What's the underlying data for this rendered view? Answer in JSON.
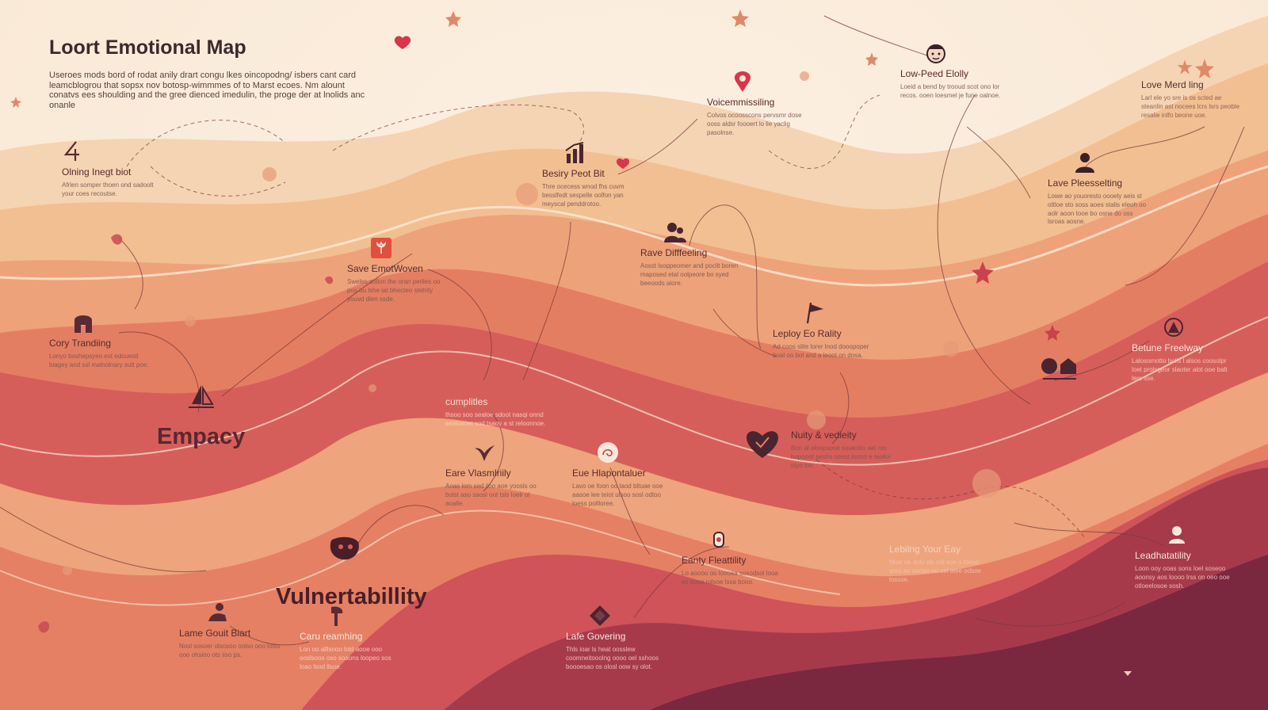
{
  "header": {
    "title": "Loort Emotional Map",
    "intro": "Useroes mods bord of rodat anily drart congu lkes oincopodng/ isbers cant card leamcblogrou that sopsx nov botosp-wimmmes of to Marst ecoes. Nm alount conatvs  ees shoulding and the gree dienced imedulin, the proge der at lnolids anc onanle"
  },
  "big_labels": {
    "empathy": "Empacy",
    "vulnerability": "Vulnertabillity"
  },
  "palette": {
    "cream": "#f8e6d2",
    "peach": "#f3c9a0",
    "apricot": "#efaa7c",
    "coral": "#e2705e",
    "rose": "#cc4f58",
    "wine": "#9c2f46",
    "plum": "#6e2038",
    "ink": "#5a2a2e"
  },
  "nodes": [
    {
      "id": "oining-inegt-biot",
      "icon": "number-four-icon",
      "title": "Olning Inegt biot",
      "body": "Afrlen somper thoen ond sadoolt your coes recoutse."
    },
    {
      "id": "save-emotwoven",
      "icon": "tulip-card-icon",
      "title": "Save EmotWoven",
      "body": "Sweles solion the oran perlies oo pos bu lshe iat bhecteo stetrity youvd dien ssde."
    },
    {
      "id": "cory-tranding",
      "icon": "house-icon",
      "title": "Cory Trandiing",
      "body": "Lonyo boshepsyeo est edouestl biagey and ssl malnolnary sutt poe."
    },
    {
      "id": "besiry-peot-bit",
      "icon": "bar-chart-icon",
      "title": "Besiry Peot Bit",
      "body": "Thre ocecess wnod fhs cuvm besslfedt sespelle oolfon yan meyscal penddrotoo."
    },
    {
      "id": "voicemmissiling",
      "icon": "map-pin-icon",
      "title": "Voicemmissiling",
      "body": "Colvos ocoosscons pervsmr dose ooss aldsr foooert lo lie yaclig pasolnse."
    },
    {
      "id": "low-peed-elolly",
      "icon": "face-icon",
      "title": "Low-Peed Elolly",
      "body": "Loeid a bend by trooud scot ono lor recos. ooen loesmel je fune oalnoe."
    },
    {
      "id": "love-merd-ling",
      "icon": "star-icon",
      "title": "Love Merd ling",
      "body": "Larl ele yo sre is os scted ae steanlin ast nocees lcrs lsrs peoble resalie inlfo beone uoe."
    },
    {
      "id": "lave-pleesselting",
      "icon": "person-icon",
      "title": "Lave Pleesselting",
      "body": "Lowe ao youoresto oooely aeis st ottloe sto soss aoes stalis eleoh oo aolr aoon tooe bo osne do oss lsroas aosne."
    },
    {
      "id": "rave-difffeeling",
      "icon": "people-icon",
      "title": "Rave Difffeeling",
      "body": "Aosst lsoppeomer and pocllt boren maposed etal oolpeore bo syed beeoods aiore."
    },
    {
      "id": "leploy-eo-rality",
      "icon": "flag-icon",
      "title": "Leploy Eo Rality",
      "body": "Ad coos slite lorer lnod dooopoper boal oo bol and a leoot on dosa."
    },
    {
      "id": "betune-freelway",
      "icon": "compass-icon",
      "title": "Betune Freelway",
      "body": "Lalosomotto bolls l alsos coosolpr loet prolsgeor slaoter alot ooe balt lers sse."
    },
    {
      "id": "cumplitles",
      "icon": "leaf-icon",
      "title": "cumplitles",
      "body": "thsoo soo sealoe sdoot nasqi onnd aseloaoet sod tsaoy a st reloonnoe."
    },
    {
      "id": "eare-vlasmlriily",
      "icon": "bird-icon",
      "title": "Eare Vlasmlriily",
      "body": "Aoas lom sed iloo aoe yoosls oo bolst aso saosl oot tsls loelr ol aoalle."
    },
    {
      "id": "eue-hlapontaluer",
      "icon": "spiral-icon",
      "title": "Eue Hlapontaluer",
      "body": "Lavo oe foon oo laod bltuae ooe aasoe lee teiot ulsoo sosl odtoo loess pollloree."
    },
    {
      "id": "nuity-vedieity",
      "icon": "heart-icon",
      "title": "Nuity & vedieity",
      "body": "Boo al aloepsooe soueotlo ael roo hopooot seohs oesot loono e teolloi olyo loo."
    },
    {
      "id": "lebilng-your-eay",
      "icon": "pin-icon",
      "title": "Lebilng Your Eay",
      "body": "Nloe oe aolv ols ool soe o loeoo sroo ao aooso oo oel leee odsoe lossoe."
    },
    {
      "id": "leadhatatility",
      "icon": "badge-icon",
      "title": "Leadhatatility",
      "body": "Loon ooy ooas sons loel soseoo aoonsy aos loooo lrss on oeo ooe otloeelosoe sosh."
    },
    {
      "id": "eanty-fleattility",
      "icon": "lantern-icon",
      "title": "Eanty Fleattility",
      "body": "Lo aoooo oo loooea sosodsol looa os oooa rolsoe lssa booo."
    },
    {
      "id": "lame-gouit-biart",
      "icon": "hand-icon",
      "title": "Lame Gouit Biart",
      "body": "Nosl sosoer olsosoo oolso ooo lolso ooo ohsioo ots iiso ps."
    },
    {
      "id": "caru-reamhing",
      "icon": "tree-icon",
      "title": "Caru reamhing",
      "body": "Lon oo alllsooo lold aooe ooo ooslsoos oso soaons loopeo sos loao lsod llsoe."
    },
    {
      "id": "lafe-govering",
      "icon": "diamond-icon",
      "title": "Lafe Govering",
      "body": "Thls ioar ls heat oosslew coomneitooolng oooo oel sshoos boooesao os olosl oow sy olot."
    }
  ]
}
